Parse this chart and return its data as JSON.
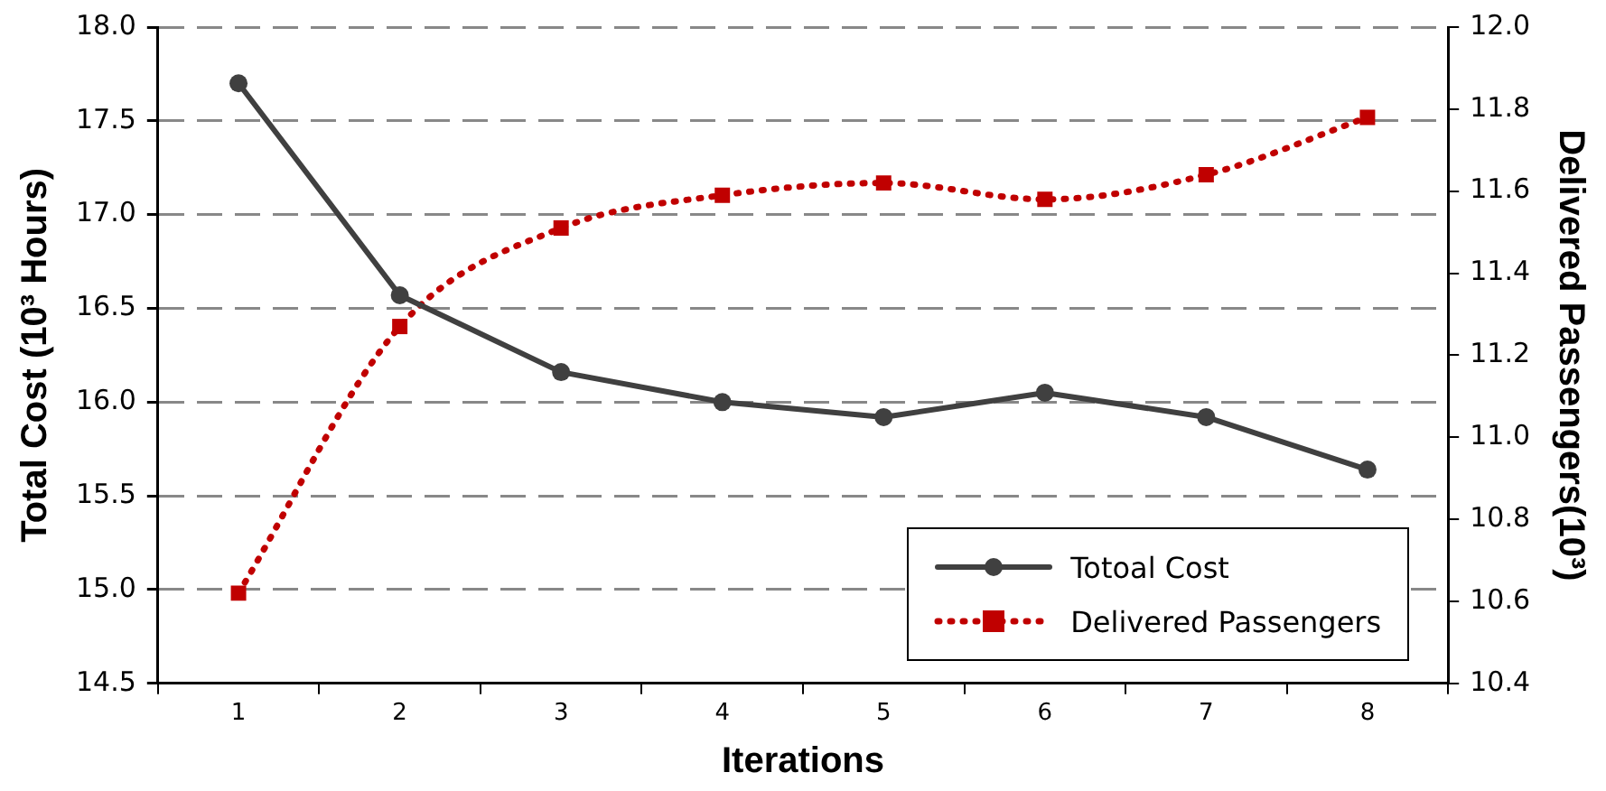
{
  "chart_data": {
    "type": "line",
    "xlabel": "Iterations",
    "ylabel": "Total Cost (10³ Hours)",
    "y2label": "Delivered Passengers(10³)",
    "categories": [
      "1",
      "2",
      "3",
      "4",
      "5",
      "6",
      "7",
      "8"
    ],
    "ylim": [
      14.5,
      18.0
    ],
    "yticks": [
      {
        "value": 14.5,
        "label": "14.5"
      },
      {
        "value": 15,
        "label": "15.0"
      },
      {
        "value": 15.5,
        "label": "15.5"
      },
      {
        "value": 16,
        "label": "16.0"
      },
      {
        "value": 16.5,
        "label": "16.5"
      },
      {
        "value": 17,
        "label": "17.0"
      },
      {
        "value": 17.5,
        "label": "17.5"
      },
      {
        "value": 18,
        "label": "18.0"
      }
    ],
    "y2lim": [
      10.4,
      12.0
    ],
    "y2ticks": [
      {
        "value": 10.4,
        "label": "10.4"
      },
      {
        "value": 10.6,
        "label": "10.6"
      },
      {
        "value": 10.8,
        "label": "10.8"
      },
      {
        "value": 11,
        "label": "11.0"
      },
      {
        "value": 11.2,
        "label": "11.2"
      },
      {
        "value": 11.4,
        "label": "11.4"
      },
      {
        "value": 11.6,
        "label": "11.6"
      },
      {
        "value": 11.8,
        "label": "11.8"
      },
      {
        "value": 12,
        "label": "12.0"
      }
    ],
    "grid": "y",
    "legend": "bottom right",
    "series": [
      {
        "name": "Totoal Cost",
        "color": "#404040",
        "marker": "circle",
        "line_style": "solid",
        "values": [
          17.7,
          16.57,
          16.16,
          16.0,
          15.92,
          16.05,
          15.92,
          15.64
        ]
      },
      {
        "name": "Delivered Passengers",
        "color": "#c00000",
        "marker": "square",
        "line_style": "dotted",
        "axis": "y2",
        "values": [
          10.62,
          11.27,
          11.51,
          11.59,
          11.62,
          11.58,
          11.64,
          11.78
        ]
      }
    ]
  }
}
